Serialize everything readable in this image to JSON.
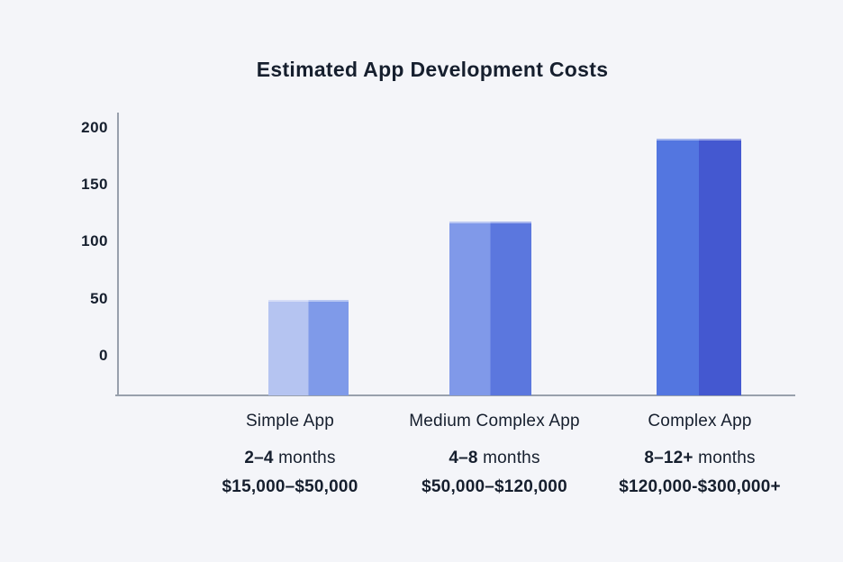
{
  "title": "Estimated App Development Costs",
  "colors": {
    "background": "#f4f5f9",
    "text": "#161f2e",
    "axis": "#98a0ac",
    "bar_halves": [
      [
        "#b5c4f1",
        "#7f9ae9"
      ],
      [
        "#8099e9",
        "#5b77de"
      ],
      [
        "#5376e0",
        "#4458d0"
      ]
    ]
  },
  "chart_data": {
    "type": "bar",
    "title": "Estimated App Development Costs",
    "categories": [
      "Simple App",
      "Medium Complex App",
      "Complex App"
    ],
    "values_estimated": [
      49,
      118,
      190
    ],
    "y_ticks": [
      200,
      150,
      100,
      50,
      0
    ],
    "ylim": [
      0,
      200
    ],
    "xlabel": "",
    "ylabel": "",
    "grid": false,
    "legend": false,
    "bar_style": "two-tone vertical split, lighter left half and darker right half",
    "annotations": [
      {
        "range": "2–4",
        "suffix": " months",
        "cost": "$15,000–$50,000"
      },
      {
        "range": "4–8",
        "suffix": " months",
        "cost": "$50,000–$120,000"
      },
      {
        "range": "8–12+",
        "suffix": " months",
        "cost": "$120,000-$300,000+"
      }
    ]
  }
}
